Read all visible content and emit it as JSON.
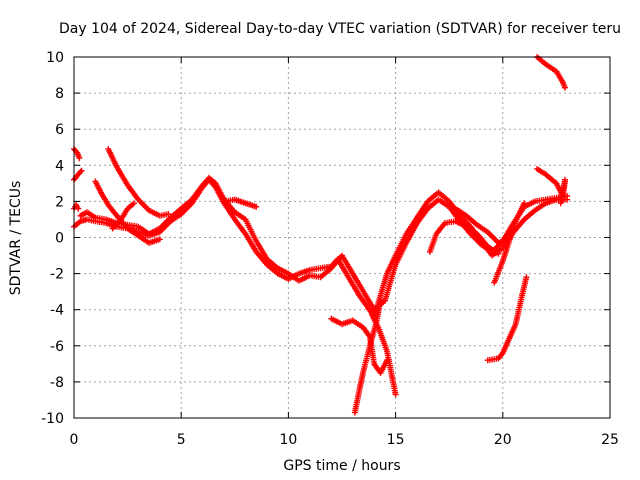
{
  "chart_data": {
    "type": "scatter",
    "title": "Day 104 of 2024, Sidereal Day-to-day VTEC variation (SDTVAR) for receiver teru",
    "xlabel": "GPS time / hours",
    "ylabel": "SDTVAR / TECUs",
    "xlim": [
      0,
      25
    ],
    "ylim": [
      -10,
      10
    ],
    "x_ticks": [
      0,
      5,
      10,
      15,
      20,
      25
    ],
    "y_ticks": [
      -10,
      -8,
      -6,
      -4,
      -2,
      0,
      2,
      4,
      6,
      8,
      10
    ],
    "x_tick_labels": [
      "0",
      "5",
      "10",
      "15",
      "20",
      "25"
    ],
    "y_tick_labels": [
      "-10",
      "-8",
      "-6",
      "-4",
      "-2",
      "0",
      "2",
      "4",
      "6",
      "8",
      "10"
    ],
    "grid": true,
    "marker": "plus",
    "marker_color": "#ff0000",
    "series": [
      {
        "values": [
          [
            0.0,
            4.9
          ],
          [
            0.15,
            4.7
          ],
          [
            0.25,
            4.4
          ]
        ]
      },
      {
        "values": [
          [
            0.0,
            3.2
          ],
          [
            0.2,
            3.5
          ],
          [
            0.35,
            3.7
          ]
        ]
      },
      {
        "values": [
          [
            0.0,
            1.6
          ],
          [
            0.1,
            1.8
          ],
          [
            0.2,
            1.6
          ]
        ]
      },
      {
        "values": [
          [
            0.0,
            0.6
          ],
          [
            0.3,
            0.9
          ],
          [
            0.6,
            1.0
          ],
          [
            1.0,
            0.9
          ],
          [
            1.5,
            0.8
          ],
          [
            2.0,
            0.6
          ],
          [
            2.5,
            0.5
          ],
          [
            3.0,
            0.3
          ],
          [
            3.5,
            0.1
          ],
          [
            4.0,
            0.3
          ],
          [
            4.5,
            0.9
          ],
          [
            5.0,
            1.3
          ],
          [
            5.5,
            1.9
          ],
          [
            6.0,
            2.8
          ],
          [
            6.3,
            3.2
          ],
          [
            6.6,
            2.8
          ],
          [
            7.0,
            1.9
          ],
          [
            7.5,
            1.0
          ],
          [
            8.0,
            0.2
          ],
          [
            8.5,
            -0.8
          ],
          [
            9.0,
            -1.5
          ],
          [
            9.5,
            -2.0
          ],
          [
            10.0,
            -2.3
          ],
          [
            10.5,
            -2.0
          ],
          [
            11.0,
            -1.8
          ],
          [
            11.5,
            -1.7
          ],
          [
            12.0,
            -1.6
          ],
          [
            12.3,
            -1.2
          ],
          [
            12.6,
            -1.8
          ],
          [
            13.0,
            -2.6
          ],
          [
            13.3,
            -3.2
          ],
          [
            13.6,
            -3.7
          ],
          [
            14.0,
            -4.4
          ],
          [
            14.3,
            -3.2
          ],
          [
            14.6,
            -2.0
          ],
          [
            15.0,
            -1.0
          ],
          [
            15.5,
            0.2
          ],
          [
            16.0,
            1.1
          ],
          [
            16.5,
            2.0
          ],
          [
            17.0,
            2.5
          ],
          [
            17.5,
            2.0
          ],
          [
            18.0,
            1.2
          ],
          [
            18.5,
            0.6
          ],
          [
            19.0,
            -0.2
          ],
          [
            19.5,
            -1.0
          ],
          [
            20.0,
            -0.6
          ],
          [
            20.5,
            0.3
          ],
          [
            21.0,
            1.0
          ],
          [
            21.5,
            1.5
          ],
          [
            22.0,
            1.9
          ],
          [
            22.5,
            2.1
          ],
          [
            23.0,
            2.1
          ]
        ]
      },
      {
        "values": [
          [
            0.3,
            1.2
          ],
          [
            0.6,
            1.4
          ],
          [
            1.0,
            1.1
          ],
          [
            1.5,
            1.0
          ],
          [
            2.0,
            0.8
          ],
          [
            2.5,
            0.7
          ],
          [
            3.0,
            0.6
          ],
          [
            3.5,
            0.2
          ],
          [
            4.0,
            0.5
          ],
          [
            4.5,
            1.1
          ],
          [
            5.0,
            1.6
          ],
          [
            5.5,
            2.1
          ],
          [
            6.0,
            2.9
          ],
          [
            6.3,
            3.3
          ],
          [
            6.6,
            3.0
          ],
          [
            7.0,
            2.1
          ],
          [
            7.5,
            1.4
          ],
          [
            8.0,
            1.0
          ],
          [
            8.5,
            -0.2
          ],
          [
            9.0,
            -1.2
          ],
          [
            9.5,
            -1.7
          ],
          [
            10.0,
            -2.0
          ],
          [
            10.5,
            -2.4
          ],
          [
            11.0,
            -2.1
          ],
          [
            11.5,
            -2.2
          ],
          [
            12.0,
            -1.7
          ],
          [
            12.5,
            -1.0
          ],
          [
            13.0,
            -2.0
          ],
          [
            13.5,
            -3.0
          ],
          [
            14.0,
            -4.0
          ],
          [
            14.5,
            -3.5
          ],
          [
            15.0,
            -1.5
          ],
          [
            15.5,
            -0.3
          ],
          [
            16.0,
            0.8
          ],
          [
            16.5,
            1.6
          ],
          [
            17.0,
            2.1
          ],
          [
            17.5,
            1.7
          ],
          [
            18.0,
            0.9
          ],
          [
            18.5,
            0.2
          ],
          [
            19.0,
            -0.4
          ],
          [
            19.5,
            -0.8
          ],
          [
            20.0,
            -0.2
          ],
          [
            20.5,
            0.8
          ],
          [
            21.0,
            1.7
          ],
          [
            21.5,
            2.0
          ],
          [
            22.0,
            2.1
          ],
          [
            22.5,
            2.2
          ],
          [
            23.0,
            2.3
          ]
        ]
      },
      {
        "values": [
          [
            1.0,
            3.1
          ],
          [
            1.3,
            2.4
          ],
          [
            1.6,
            1.8
          ],
          [
            2.0,
            1.2
          ],
          [
            2.5,
            0.5
          ],
          [
            3.0,
            0.1
          ],
          [
            3.5,
            -0.3
          ],
          [
            4.0,
            -0.1
          ]
        ]
      },
      {
        "values": [
          [
            1.6,
            4.9
          ],
          [
            2.0,
            3.9
          ],
          [
            2.5,
            2.9
          ],
          [
            3.0,
            2.1
          ],
          [
            3.5,
            1.5
          ],
          [
            4.0,
            1.2
          ],
          [
            4.4,
            1.3
          ]
        ]
      },
      {
        "values": [
          [
            1.8,
            0.5
          ],
          [
            2.2,
            1.0
          ],
          [
            2.5,
            1.6
          ],
          [
            2.8,
            1.9
          ]
        ]
      },
      {
        "values": [
          [
            7.0,
            2.0
          ],
          [
            7.5,
            2.1
          ],
          [
            8.0,
            1.9
          ],
          [
            8.5,
            1.7
          ]
        ]
      },
      {
        "values": [
          [
            12.0,
            -4.5
          ],
          [
            12.5,
            -4.8
          ],
          [
            13.0,
            -4.6
          ],
          [
            13.5,
            -5.0
          ],
          [
            13.8,
            -5.5
          ],
          [
            14.0,
            -7.0
          ],
          [
            14.3,
            -7.5
          ],
          [
            14.6,
            -6.8
          ]
        ]
      },
      {
        "values": [
          [
            13.1,
            -9.7
          ],
          [
            13.3,
            -8.5
          ],
          [
            13.5,
            -7.4
          ],
          [
            13.8,
            -6.0
          ],
          [
            14.1,
            -4.7
          ],
          [
            14.3,
            -3.5
          ]
        ]
      },
      {
        "values": [
          [
            13.9,
            -4.3
          ],
          [
            14.2,
            -5.0
          ],
          [
            14.6,
            -6.3
          ],
          [
            15.0,
            -8.7
          ]
        ]
      },
      {
        "values": [
          [
            16.6,
            -0.8
          ],
          [
            16.9,
            0.2
          ],
          [
            17.3,
            0.8
          ],
          [
            17.8,
            0.9
          ],
          [
            18.3,
            0.6
          ],
          [
            18.8,
            0.2
          ],
          [
            19.3,
            -0.5
          ],
          [
            19.8,
            -0.9
          ]
        ]
      },
      {
        "values": [
          [
            17.8,
            1.6
          ],
          [
            18.3,
            1.2
          ],
          [
            18.8,
            0.7
          ],
          [
            19.3,
            0.3
          ],
          [
            19.8,
            -0.3
          ],
          [
            20.2,
            -0.1
          ]
        ]
      },
      {
        "values": [
          [
            19.6,
            -2.5
          ],
          [
            20.0,
            -1.3
          ],
          [
            20.3,
            -0.2
          ],
          [
            20.6,
            0.9
          ],
          [
            21.0,
            1.9
          ]
        ]
      },
      {
        "values": [
          [
            19.3,
            -6.8
          ],
          [
            19.8,
            -6.7
          ],
          [
            20.0,
            -6.4
          ],
          [
            20.3,
            -5.6
          ],
          [
            20.6,
            -4.8
          ],
          [
            20.9,
            -3.2
          ],
          [
            21.1,
            -2.2
          ]
        ]
      },
      {
        "values": [
          [
            21.6,
            10.0
          ],
          [
            22.0,
            9.6
          ],
          [
            22.5,
            9.2
          ],
          [
            22.8,
            8.6
          ],
          [
            22.9,
            8.3
          ]
        ]
      },
      {
        "values": [
          [
            21.6,
            3.8
          ],
          [
            22.0,
            3.5
          ],
          [
            22.5,
            3.0
          ],
          [
            22.8,
            2.3
          ],
          [
            22.9,
            3.1
          ]
        ]
      },
      {
        "values": [
          [
            22.7,
            1.9
          ],
          [
            22.8,
            2.5
          ],
          [
            22.9,
            3.2
          ]
        ]
      }
    ]
  }
}
